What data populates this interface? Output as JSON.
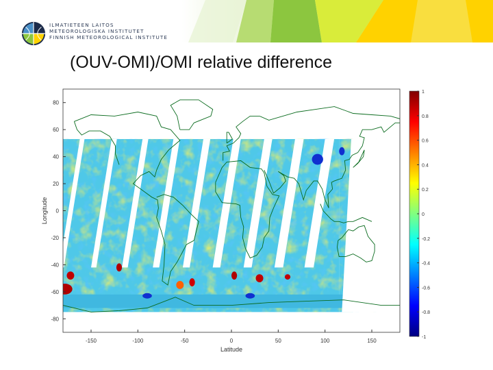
{
  "header": {
    "org_lines": [
      "ILMATIETEEN LAITOS",
      "METEOROLOGISKA INSTITUTET",
      "FINNISH METEOROLOGICAL INSTITUTE"
    ],
    "colors": {
      "green": "#8cc63f",
      "yellow": "#ffd200",
      "navy": "#1c2b4a"
    }
  },
  "chart_data": {
    "type": "heatmap",
    "title": "(OUV-OMI)/OMI relative difference",
    "xlabel": "Latitude",
    "ylabel": "Longitude",
    "xlim": [
      -180,
      180
    ],
    "ylim": [
      -90,
      90
    ],
    "xticks": [
      "-150",
      "-100",
      "-50",
      "0",
      "50",
      "100",
      "150"
    ],
    "yticks": [
      "80",
      "60",
      "40",
      "20",
      "0",
      "-20",
      "-40",
      "-60",
      "-80"
    ],
    "colorbar": {
      "range": [
        -1,
        1
      ],
      "ticks": [
        "1",
        "0.8",
        "0.6",
        "0.4",
        "0.2",
        "0",
        "-0.2",
        "-0.4",
        "-0.6",
        "-0.8",
        "-1"
      ],
      "colormap": "jet"
    },
    "data_coverage": {
      "lat_range": [
        -75,
        53
      ],
      "pattern": "satellite swaths with diagonal gaps"
    }
  }
}
